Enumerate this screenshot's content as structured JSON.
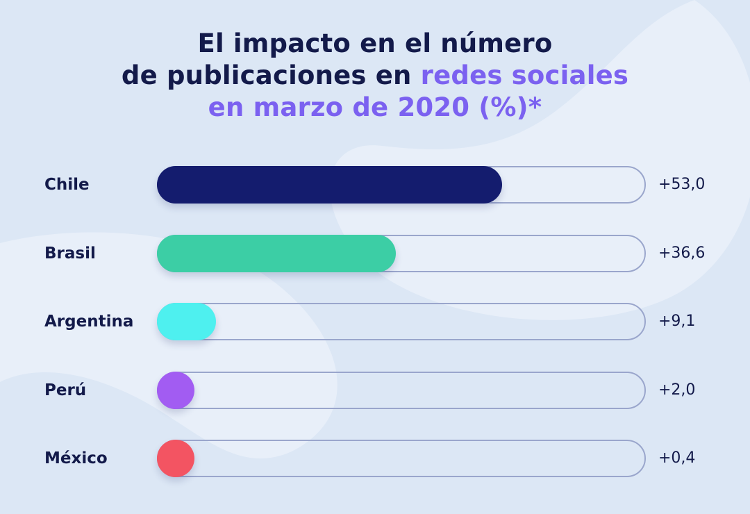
{
  "title": {
    "line1": "El impacto en el número",
    "line2_plain": "de publicaciones en ",
    "line2_highlight": "redes sociales",
    "line3": "en marzo de 2020 (%)*"
  },
  "colors": {
    "background": "#dce7f5",
    "title": "#131a4a",
    "highlight": "#7b61f0",
    "track_border": "#9aa6cc"
  },
  "chart_data": {
    "type": "bar",
    "orientation": "horizontal",
    "categories": [
      "Chile",
      "Brasil",
      "Argentina",
      "Perú",
      "México"
    ],
    "values": [
      53.0,
      36.6,
      9.1,
      2.0,
      0.4
    ],
    "value_labels": [
      "+53,0",
      "+36,6",
      "+9,1",
      "+2,0",
      "+0,4"
    ],
    "bar_colors": [
      "#141c6e",
      "#3ccea5",
      "#4ef0ef",
      "#a25cf2",
      "#f35462"
    ],
    "xlim": [
      0,
      75
    ],
    "grid": false,
    "legend": "none"
  }
}
